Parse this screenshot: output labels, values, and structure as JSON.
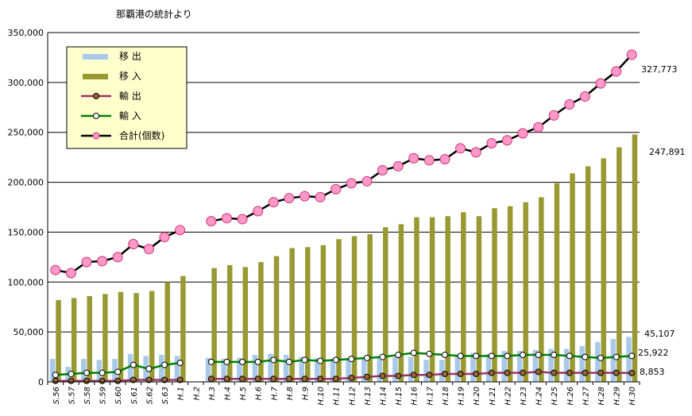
{
  "chart_data": {
    "type": "bar",
    "title": "那覇港の統計より",
    "ylim": [
      0,
      350000
    ],
    "yticks": [
      "0",
      "50,000",
      "100,000",
      "150,000",
      "200,000",
      "250,000",
      "300,000",
      "350,000"
    ],
    "grid": true,
    "legend_position": "top-left",
    "categories": [
      "S.56",
      "S.57",
      "S.58",
      "S.59",
      "S.60",
      "S.61",
      "S.62",
      "S.63",
      "H.1",
      "H.2",
      "H.3",
      "H.4",
      "H.5",
      "H.6",
      "H.7",
      "H.8",
      "H.9",
      "H.10",
      "H.11",
      "H.12",
      "H.13",
      "H.14",
      "H.15",
      "H.16",
      "H.17",
      "H.18",
      "H.19",
      "H.20",
      "H.21",
      "H.22",
      "H.23",
      "H.24",
      "H.25",
      "H.26",
      "H.27",
      "H.28",
      "H.29",
      "H.30"
    ],
    "series": [
      {
        "name": "移 出",
        "kind": "bar",
        "color": "#a9c9ea",
        "values": [
          23000,
          15000,
          23000,
          22000,
          23000,
          28000,
          26000,
          27000,
          26000,
          null,
          24000,
          23000,
          24000,
          27000,
          28000,
          27000,
          25000,
          24000,
          23000,
          24000,
          24000,
          25000,
          25000,
          25000,
          22000,
          22000,
          26000,
          29000,
          28000,
          31000,
          31000,
          32000,
          33000,
          33000,
          36000,
          40000,
          43000,
          45107
        ]
      },
      {
        "name": "移 入",
        "kind": "bar",
        "color": "#999933",
        "values": [
          82000,
          84000,
          86000,
          88000,
          90000,
          89000,
          91000,
          100000,
          106000,
          null,
          114000,
          117000,
          115000,
          120000,
          126000,
          134000,
          135000,
          137000,
          143000,
          146000,
          148000,
          155000,
          158000,
          165000,
          165000,
          166000,
          170000,
          166000,
          174000,
          176000,
          180000,
          185000,
          199000,
          209000,
          216000,
          224000,
          235000,
          247891
        ]
      },
      {
        "name": "輸 出",
        "kind": "line",
        "color": "#993366",
        "values": [
          1000,
          1000,
          1000,
          1000,
          1000,
          2000,
          2000,
          2000,
          2000,
          null,
          3000,
          3000,
          3000,
          3000,
          3000,
          3000,
          3000,
          3000,
          3000,
          4000,
          5000,
          6000,
          6000,
          7000,
          7000,
          8000,
          8000,
          8000,
          9000,
          9000,
          9000,
          10000,
          9000,
          9000,
          9000,
          9000,
          9000,
          8853
        ]
      },
      {
        "name": "輸 入",
        "kind": "line",
        "color": "#008000",
        "values": [
          7000,
          8000,
          9000,
          9000,
          10000,
          17000,
          13000,
          17000,
          19000,
          null,
          20000,
          20000,
          20000,
          20000,
          22000,
          20000,
          22000,
          21000,
          22000,
          23000,
          24000,
          25000,
          27000,
          29000,
          28000,
          27000,
          26000,
          26000,
          26000,
          26000,
          27000,
          27000,
          27000,
          26000,
          25000,
          24000,
          25000,
          25922
        ]
      },
      {
        "name": "合計(個数)",
        "kind": "line",
        "color": "#000000",
        "values": [
          112000,
          109000,
          120000,
          121000,
          125000,
          138000,
          133000,
          145000,
          152000,
          null,
          161000,
          164000,
          163000,
          171000,
          180000,
          184000,
          186000,
          185000,
          193000,
          199000,
          201000,
          212000,
          216000,
          224000,
          222000,
          223000,
          234000,
          230000,
          239000,
          242000,
          249000,
          255000,
          267000,
          278000,
          286000,
          299000,
          311000,
          327773
        ]
      }
    ],
    "annotations": [
      "327,773",
      "247,891",
      "45,107",
      "25,922",
      "8,853"
    ]
  }
}
